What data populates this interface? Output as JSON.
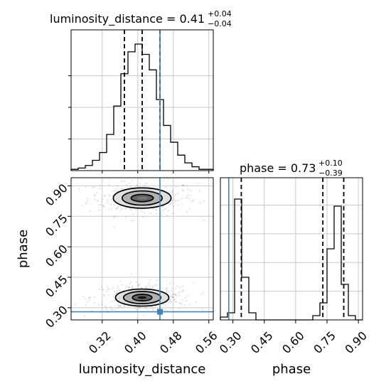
{
  "chart_data": {
    "type": "corner",
    "parameters": [
      "luminosity_distance",
      "phase"
    ],
    "truth": {
      "luminosity_distance": 0.45,
      "phase": 0.28
    },
    "truth_color": "#4682b4",
    "line_color": "#000000",
    "panels": {
      "ld_hist": {
        "type": "histogram",
        "title": {
          "main": "luminosity_distance = 0.41",
          "sup": "+0.04",
          "sub": "−0.04"
        },
        "xlim": [
          0.25,
          0.57
        ],
        "bin_edges": [
          0.25,
          0.266,
          0.282,
          0.298,
          0.314,
          0.33,
          0.346,
          0.362,
          0.378,
          0.394,
          0.41,
          0.426,
          0.442,
          0.458,
          0.474,
          0.49,
          0.506,
          0.522,
          0.538,
          0.554,
          0.57
        ],
        "counts": [
          0.01,
          0.02,
          0.04,
          0.08,
          0.14,
          0.28,
          0.5,
          0.75,
          0.92,
          0.98,
          0.9,
          0.78,
          0.55,
          0.35,
          0.22,
          0.12,
          0.06,
          0.03,
          0.01,
          0.01
        ],
        "quantiles": [
          0.37,
          0.41,
          0.45
        ]
      },
      "phase_hist": {
        "type": "histogram",
        "title": {
          "main": "phase = 0.73",
          "sup": "+0.10",
          "sub": "−0.39"
        },
        "xlim": [
          0.24,
          0.92
        ],
        "bin_edges": [
          0.24,
          0.274,
          0.308,
          0.342,
          0.376,
          0.41,
          0.444,
          0.478,
          0.512,
          0.546,
          0.58,
          0.614,
          0.648,
          0.682,
          0.716,
          0.75,
          0.784,
          0.818,
          0.852,
          0.886,
          0.92
        ],
        "counts": [
          0.02,
          0.05,
          0.85,
          0.3,
          0.05,
          0.0,
          0.0,
          0.0,
          0.0,
          0.0,
          0.0,
          0.0,
          0.0,
          0.03,
          0.12,
          0.5,
          0.8,
          0.25,
          0.03,
          0.0
        ],
        "quantiles": [
          0.34,
          0.73,
          0.83
        ]
      },
      "joint": {
        "type": "contour",
        "xlim": [
          0.25,
          0.57
        ],
        "ylim": [
          0.24,
          0.94
        ],
        "modes": [
          {
            "x": 0.41,
            "y": 0.84,
            "weight": 0.45,
            "sx": [
              0.065,
              0.045,
              0.025
            ],
            "sy": [
              0.05,
              0.035,
              0.018
            ]
          },
          {
            "x": 0.41,
            "y": 0.35,
            "weight": 0.55,
            "sx": [
              0.06,
              0.042,
              0.022
            ],
            "sy": [
              0.042,
              0.03,
              0.016
            ]
          }
        ]
      }
    },
    "axes": {
      "ld": {
        "label": "luminosity_distance",
        "ticks": [
          0.32,
          0.4,
          0.48,
          0.56
        ],
        "tick_labels": [
          "0.32",
          "0.40",
          "0.48",
          "0.56"
        ]
      },
      "phase_y": {
        "label": "phase",
        "ticks": [
          0.3,
          0.45,
          0.6,
          0.75,
          0.9
        ],
        "tick_labels": [
          "0.30",
          "0.45",
          "0.60",
          "0.75",
          "0.90"
        ]
      },
      "phase_x": {
        "label": "phase",
        "ticks": [
          0.3,
          0.45,
          0.6,
          0.75,
          0.9
        ],
        "tick_labels": [
          "0.30",
          "0.45",
          "0.60",
          "0.75",
          "0.90"
        ]
      }
    },
    "grid": true
  }
}
